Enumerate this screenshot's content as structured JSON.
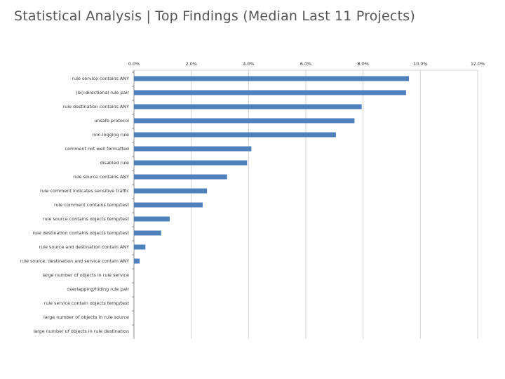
{
  "slide": {
    "title": "Statistical Analysis | Top Findings (Median Last 11 Projects)"
  },
  "chart_data": {
    "type": "bar",
    "orientation": "horizontal",
    "title": "",
    "xlabel": "",
    "ylabel": "",
    "xlim": [
      0,
      12
    ],
    "ticks": [
      0,
      2,
      4,
      6,
      8,
      10,
      12
    ],
    "tick_labels": [
      "0.0%",
      "2.0%",
      "4.0%",
      "6.0%",
      "8.0%",
      "10.0%",
      "12.0%"
    ],
    "grid": true,
    "bar_color": "#4f81bd",
    "categories": [
      "rule service contains ANY",
      "(bi)-directional rule pair",
      "rule destination contains ANY",
      "unsafe protocol",
      "non-logging rule",
      "comment not well formatted",
      "disabled rule",
      "rule source contains ANY",
      "rule comment indicates sensitive traffic",
      "rule comment contains temp/test",
      "rule source contains objects temp/test",
      "rule destination contains objects temp/test",
      "rule source and destination contain ANY",
      "rule source, destination and service contain ANY",
      "large number of objects in rule service",
      "overlapping/hiding rule pair",
      "rule service contain objects temp/test",
      "large number of objects in rule source",
      "large number of objects in rule destination"
    ],
    "values": [
      9.6,
      9.5,
      7.95,
      7.7,
      7.05,
      4.1,
      3.95,
      3.25,
      2.55,
      2.4,
      1.25,
      0.95,
      0.4,
      0.2,
      0,
      0,
      0,
      0,
      0
    ]
  }
}
